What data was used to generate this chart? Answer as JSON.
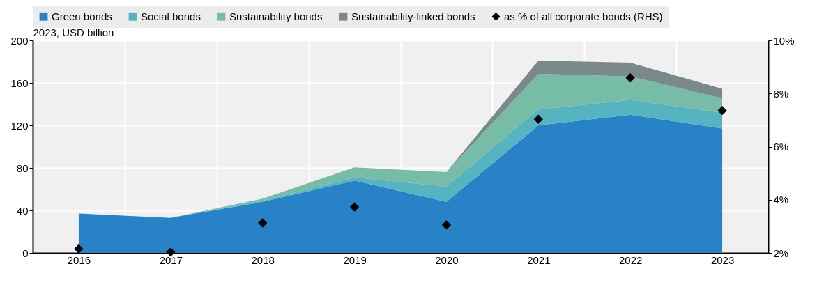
{
  "chart_data": {
    "type": "area",
    "ylabel": "2023, USD billion",
    "stacked": true,
    "categories": [
      "2016",
      "2017",
      "2018",
      "2019",
      "2020",
      "2021",
      "2022",
      "2023"
    ],
    "series": [
      {
        "name": "Green bonds",
        "color": "#2782c8",
        "values": [
          37,
          33,
          48,
          68,
          48,
          120,
          130,
          117
        ]
      },
      {
        "name": "Social bonds",
        "color": "#56b4c1",
        "values": [
          0,
          0,
          1,
          3,
          14.5,
          15,
          14,
          15
        ]
      },
      {
        "name": "Sustainability bonds",
        "color": "#76bca6",
        "values": [
          0,
          0,
          2,
          9.5,
          13.5,
          33.5,
          22,
          13.5
        ]
      },
      {
        "name": "Sustainability-linked bonds",
        "color": "#7a8a8a",
        "values": [
          0,
          0,
          0,
          0,
          0,
          12.5,
          13,
          9
        ]
      },
      {
        "name": "as % of all corporate bonds (RHS)",
        "type": "scatter",
        "axis": "y2",
        "marker": "diamond",
        "color": "#000000",
        "values": [
          2.15,
          2.03,
          3.13,
          3.73,
          3.05,
          7.03,
          8.59,
          7.36
        ]
      }
    ],
    "ylim": [
      0,
      200
    ],
    "yticks": [
      0,
      40,
      80,
      120,
      160,
      200
    ],
    "y2lim": [
      2,
      10
    ],
    "y2ticks": [
      {
        "value": 2,
        "label": "2%"
      },
      {
        "value": 4,
        "label": "4%"
      },
      {
        "value": 6,
        "label": "6%"
      },
      {
        "value": 8,
        "label": "8%"
      },
      {
        "value": 10,
        "label": "10%"
      }
    ],
    "grid": true,
    "legend": "top"
  }
}
